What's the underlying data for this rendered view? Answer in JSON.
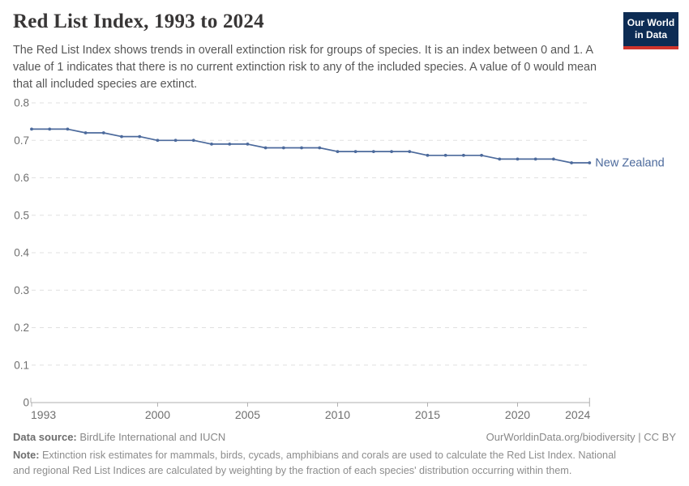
{
  "header": {
    "title": "Red List Index, 1993 to 2024",
    "subtitle": "The Red List Index shows trends in overall extinction risk for groups of species. It is an index between 0 and 1. A value of 1 indicates that there is no current extinction risk to any of the included species. A value of 0 would mean that all included species are extinct.",
    "logo": {
      "line1": "Our World",
      "line2": "in Data",
      "bg_color": "#0D2C54",
      "bar_color": "#D0342C"
    }
  },
  "chart_data": {
    "type": "line",
    "title": "Red List Index, 1993 to 2024",
    "xlabel": "",
    "ylabel": "",
    "xlim": [
      1993,
      2024
    ],
    "ylim": [
      0,
      0.8
    ],
    "xticks": [
      1993,
      2000,
      2005,
      2010,
      2015,
      2020,
      2024
    ],
    "yticks": [
      0,
      0.1,
      0.2,
      0.3,
      0.4,
      0.5,
      0.6,
      0.7,
      0.8
    ],
    "grid": "horizontal-dashed",
    "legend_position": "end-of-line-label",
    "x": [
      1993,
      1994,
      1995,
      1996,
      1997,
      1998,
      1999,
      2000,
      2001,
      2002,
      2003,
      2004,
      2005,
      2006,
      2007,
      2008,
      2009,
      2010,
      2011,
      2012,
      2013,
      2014,
      2015,
      2016,
      2017,
      2018,
      2019,
      2020,
      2021,
      2022,
      2023,
      2024
    ],
    "series": [
      {
        "name": "New Zealand",
        "color": "#4C6A9C",
        "values": [
          0.73,
          0.73,
          0.73,
          0.72,
          0.72,
          0.71,
          0.71,
          0.7,
          0.7,
          0.7,
          0.69,
          0.69,
          0.69,
          0.68,
          0.68,
          0.68,
          0.68,
          0.67,
          0.67,
          0.67,
          0.67,
          0.67,
          0.66,
          0.66,
          0.66,
          0.66,
          0.65,
          0.65,
          0.65,
          0.65,
          0.64,
          0.64
        ]
      }
    ],
    "styles": {
      "grid_color": "#E0E0E0",
      "axis_color": "#AFAFAF",
      "tick_label_color": "#707070"
    }
  },
  "footer": {
    "datasource_label": "Data source:",
    "datasource_value": "BirdLife International and IUCN",
    "link": "OurWorldinData.org/biodiversity | CC BY",
    "note_label": "Note:",
    "note_value": "Extinction risk estimates for mammals, birds, cycads, amphibians and corals are used to calculate the Red List Index. National and regional Red List Indices are calculated by weighting by the fraction of each species' distribution occurring within them."
  }
}
